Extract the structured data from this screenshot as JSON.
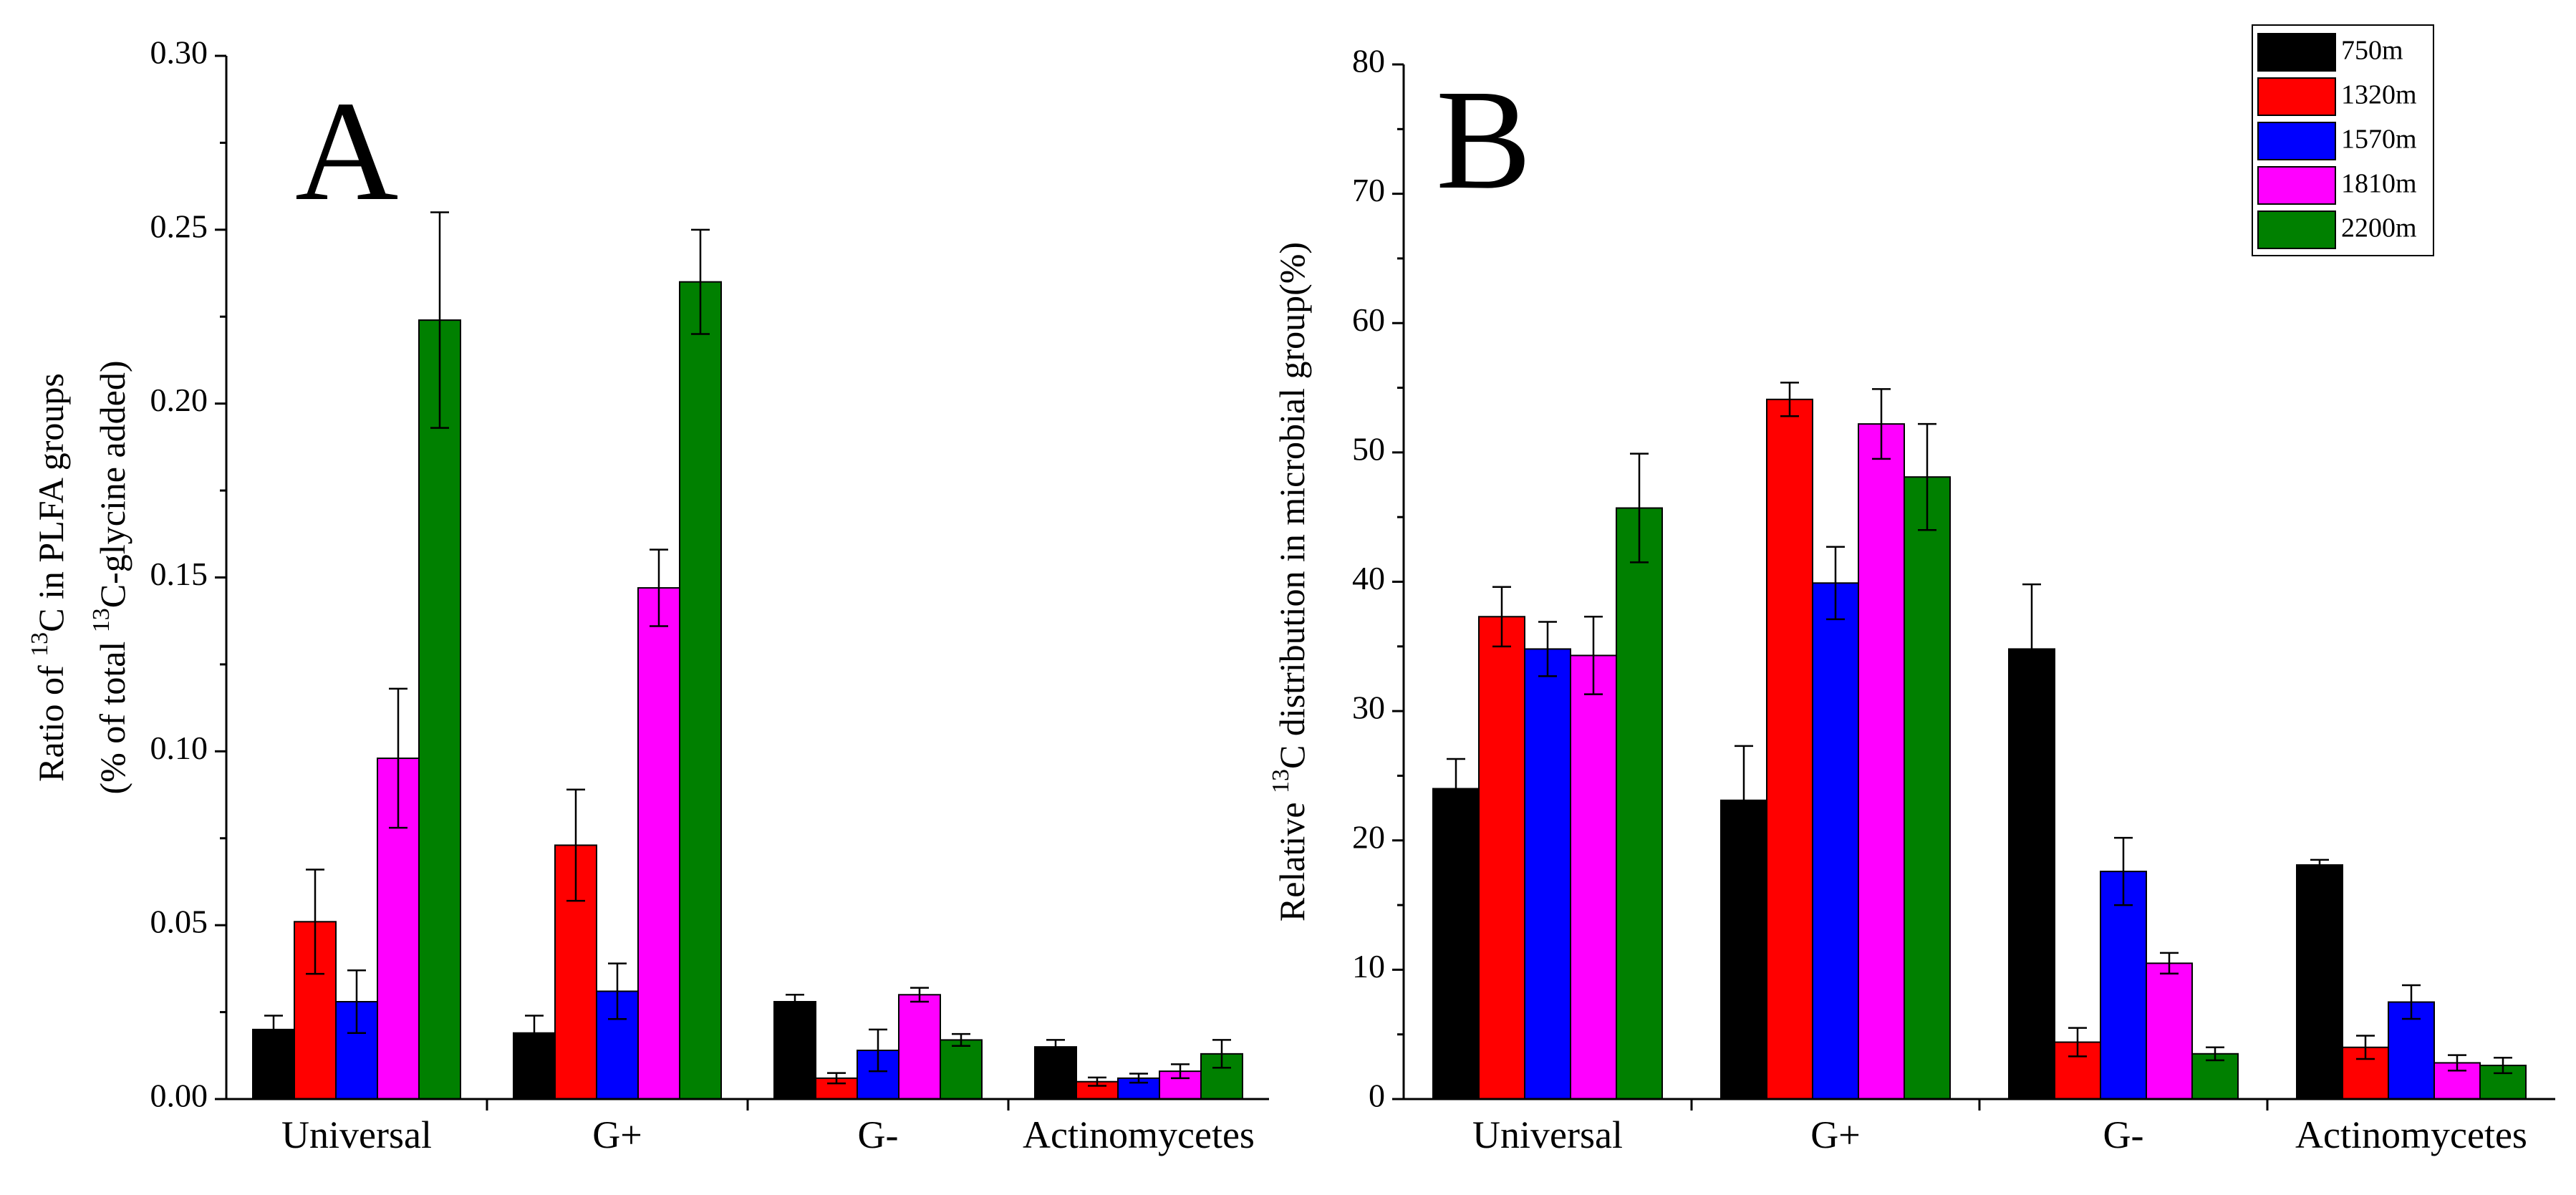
{
  "chart_data": [
    {
      "panel_label": "A",
      "type": "bar",
      "categories": [
        "Universal",
        "G+",
        "G-",
        "Actinomycetes"
      ],
      "ylabel_lines": [
        [
          "Ratio of ",
          {
            "sup": "13"
          },
          "C in PLFA groups"
        ],
        [
          "(% of total ",
          {
            "sup": "13"
          },
          "C-glycine added)"
        ]
      ],
      "ylim": [
        0,
        0.3
      ],
      "yticks": [
        0.0,
        0.05,
        0.1,
        0.15,
        0.2,
        0.25,
        0.3
      ],
      "ytick_labels": [
        "0.00",
        "0.05",
        "0.10",
        "0.15",
        "0.20",
        "0.25",
        "0.30"
      ],
      "series": [
        {
          "name": "750m",
          "color": "#000000",
          "values": [
            0.02,
            0.019,
            0.028,
            0.015
          ],
          "errors": [
            0.004,
            0.005,
            0.002,
            0.002
          ]
        },
        {
          "name": "1320m",
          "color": "#ff0000",
          "values": [
            0.051,
            0.073,
            0.006,
            0.005
          ],
          "errors": [
            0.015,
            0.016,
            0.0015,
            0.0012
          ]
        },
        {
          "name": "1570m",
          "color": "#0000ff",
          "values": [
            0.028,
            0.031,
            0.014,
            0.006
          ],
          "errors": [
            0.009,
            0.008,
            0.006,
            0.0013
          ]
        },
        {
          "name": "1810m",
          "color": "#ff00ff",
          "values": [
            0.098,
            0.147,
            0.03,
            0.008
          ],
          "errors": [
            0.02,
            0.011,
            0.002,
            0.002
          ]
        },
        {
          "name": "2200m",
          "color": "#008000",
          "values": [
            0.224,
            0.235,
            0.017,
            0.013
          ],
          "errors": [
            0.031,
            0.015,
            0.0017,
            0.004
          ]
        }
      ]
    },
    {
      "panel_label": "B",
      "type": "bar",
      "categories": [
        "Universal",
        "G+",
        "G-",
        "Actinomycetes"
      ],
      "ylabel_lines": [
        [
          "Relative ",
          {
            "sup": "13"
          },
          "C distribution in microbial group(%)"
        ]
      ],
      "ylim": [
        0,
        80
      ],
      "yticks": [
        0,
        10,
        20,
        30,
        40,
        50,
        60,
        70,
        80
      ],
      "ytick_labels": [
        "0",
        "10",
        "20",
        "30",
        "40",
        "50",
        "60",
        "70",
        "80"
      ],
      "legend_position": "top-right",
      "series": [
        {
          "name": "750m",
          "color": "#000000",
          "values": [
            24.0,
            23.1,
            34.8,
            18.1
          ],
          "errors": [
            2.3,
            4.2,
            5.0,
            0.4
          ]
        },
        {
          "name": "1320m",
          "color": "#ff0000",
          "values": [
            37.3,
            54.1,
            4.4,
            4.0
          ],
          "errors": [
            2.3,
            1.3,
            1.1,
            0.9
          ]
        },
        {
          "name": "1570m",
          "color": "#0000ff",
          "values": [
            34.8,
            39.9,
            17.6,
            7.5
          ],
          "errors": [
            2.1,
            2.8,
            2.6,
            1.3
          ]
        },
        {
          "name": "1810m",
          "color": "#ff00ff",
          "values": [
            34.3,
            52.2,
            10.5,
            2.8
          ],
          "errors": [
            3.0,
            2.7,
            0.8,
            0.6
          ]
        },
        {
          "name": "2200m",
          "color": "#008000",
          "values": [
            45.7,
            48.1,
            3.5,
            2.6
          ],
          "errors": [
            4.2,
            4.1,
            0.5,
            0.6
          ]
        }
      ]
    }
  ]
}
